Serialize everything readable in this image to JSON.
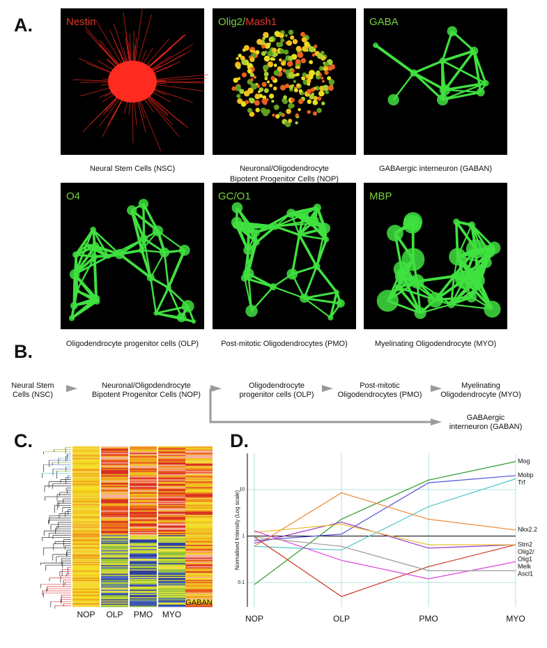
{
  "panels": {
    "a": "A.",
    "b": "B.",
    "c": "C.",
    "d": "D."
  },
  "images": [
    {
      "label": [
        {
          "text": "Nestin",
          "color": "#e23a2a"
        }
      ],
      "caption": [
        "Neural Stem Cells (NSC)"
      ],
      "color": "#ff2a20"
    },
    {
      "label": [
        {
          "text": "Olig2/",
          "color": "#7ad040"
        },
        {
          "text": "Mash1",
          "color": "#e23a2a"
        }
      ],
      "caption": [
        "Neuronal/Oligodendrocyte",
        "Bipotent Progenitor Cells (NOP)"
      ],
      "color": "#d8d020"
    },
    {
      "label": [
        {
          "text": "GABA",
          "color": "#7ad040"
        }
      ],
      "caption": [
        "GABAergic interneuron (GABAN)"
      ],
      "color": "#40e040"
    },
    {
      "label": [
        {
          "text": "O4",
          "color": "#7ad040"
        }
      ],
      "caption": [
        "Oligodendrocyte progenitor cells (OLP)"
      ],
      "color": "#40e040"
    },
    {
      "label": [
        {
          "text": "GC/O1",
          "color": "#7ad040"
        }
      ],
      "caption": [
        "Post-mitotic Oligodendrocytes (PMO)"
      ],
      "color": "#40e040"
    },
    {
      "label": [
        {
          "text": "MBP",
          "color": "#7ad040"
        }
      ],
      "caption": [
        "Myelinating Oligodendrocyte (MYO)"
      ],
      "color": "#40e040"
    }
  ],
  "flow": {
    "nodes": [
      [
        "Neural Stem",
        "Cells (NSC)"
      ],
      [
        "Neuronal/Oligodendrocyte",
        "Bipotent Progenitor Cells (NOP)"
      ],
      [
        "Oligodendrocyte",
        "progenitor cells (OLP)"
      ],
      [
        "Post-mitotic",
        "Oligodendrocytes (PMO)"
      ],
      [
        "Myelinating",
        "Oligodendrocyte (MYO)"
      ],
      [
        "GABAergic",
        "interneuron (GABAN)"
      ]
    ]
  },
  "heatmap": {
    "columns": [
      "NOP",
      "OLP",
      "PMO",
      "MYO"
    ],
    "label": "GABAN"
  },
  "chart_data": {
    "type": "line",
    "y_label": "Normalised Intensity (Log scale)",
    "categories": [
      "NOP",
      "OLP",
      "PMO",
      "MYO"
    ],
    "log_scale": true,
    "grid": true,
    "grid_color": "#b0e0e0",
    "baseline": 1,
    "ylim": [
      0.03,
      60
    ],
    "yticks": [
      0.1,
      1,
      10
    ],
    "series": [
      {
        "name": "Mog",
        "color": "#2e9a2e",
        "values": [
          0.09,
          2.3,
          16,
          40
        ]
      },
      {
        "name": "Mobp",
        "color": "#5050d8",
        "values": [
          0.8,
          1.1,
          14,
          20
        ]
      },
      {
        "name": "Trf",
        "color": "#50c8c8",
        "values": [
          0.6,
          0.5,
          4.3,
          17
        ]
      },
      {
        "name": "Nkx2.2",
        "color": "#ee8830",
        "values": [
          0.6,
          8.5,
          2.3,
          1.35
        ]
      },
      {
        "name": "Stm2",
        "color": "#cc3322",
        "values": [
          0.95,
          0.05,
          0.22,
          0.65
        ]
      },
      {
        "name": "Olig2/",
        "color": "#9933cc",
        "values": [
          0.7,
          2.0,
          0.55,
          0.65
        ]
      },
      {
        "name": "Olig1",
        "color": "#e8c030",
        "values": [
          1.2,
          1.8,
          0.65,
          0.65
        ]
      },
      {
        "name": "Melk",
        "color": "#dd44dd",
        "values": [
          1.3,
          0.3,
          0.12,
          0.28
        ]
      },
      {
        "name": "Ascl1",
        "color": "#999999",
        "values": [
          0.95,
          0.6,
          0.18,
          0.18
        ]
      }
    ]
  }
}
